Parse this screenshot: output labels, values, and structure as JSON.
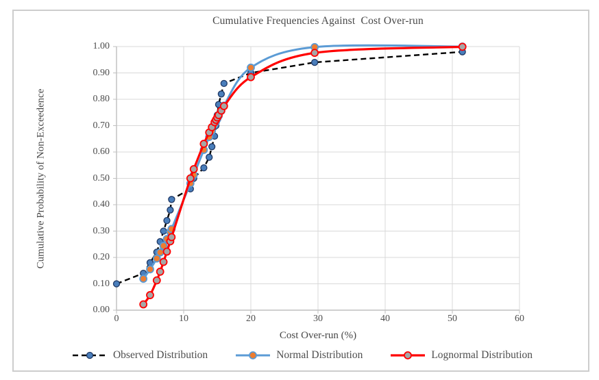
{
  "figure": {
    "x_axis": {
      "tick_labels": [
        "0",
        "10",
        "20",
        "30",
        "40",
        "50",
        "60"
      ]
    },
    "y_axis": {
      "tick_labels": [
        "0.00",
        "0.10",
        "0.20",
        "0.30",
        "0.40",
        "0.50",
        "0.60",
        "0.70",
        "0.80",
        "0.90",
        "1.00"
      ]
    },
    "colors": {
      "gridline": "#d9d9d9",
      "axis_line": "#bfbfbf",
      "text": "#4d4d4d",
      "figure_border": "#cdcdcd",
      "observed_line": "#000000",
      "observed_marker_fill": "#4a7ebb",
      "observed_marker_stroke": "#1f3864",
      "normal_line": "#5b9bd5",
      "normal_marker_fill": "#ed7d31",
      "lognormal_line": "#ff0000",
      "lognormal_marker_fill": "#a6a6a6"
    }
  },
  "chart_data": {
    "type": "line",
    "title": "Cumulative Frequencies Against  Cost Over-run",
    "xlabel": "Cost Over-run (%)",
    "ylabel": "Cumulative Probability of Non-Exceedence",
    "xlim": [
      0,
      60
    ],
    "ylim": [
      0,
      1
    ],
    "x_ticks": [
      0,
      10,
      20,
      30,
      40,
      50,
      60
    ],
    "y_ticks": [
      0,
      0.1,
      0.2,
      0.3,
      0.4,
      0.5,
      0.6,
      0.7,
      0.8,
      0.9,
      1.0
    ],
    "grid": true,
    "legend_position": "bottom",
    "series": [
      {
        "name": "Observed Distribution",
        "line_style": "dashed",
        "smooth": false,
        "line_color": "#000000",
        "line_width": 2.4,
        "marker_fill": "#4a7ebb",
        "marker_stroke": "#1f3864",
        "marker_radius": 4.5,
        "points": [
          [
            0,
            0.1
          ],
          [
            4,
            0.14
          ],
          [
            5,
            0.18
          ],
          [
            6,
            0.22
          ],
          [
            6.5,
            0.26
          ],
          [
            7,
            0.3
          ],
          [
            7.5,
            0.34
          ],
          [
            8,
            0.38
          ],
          [
            8.2,
            0.42
          ],
          [
            11,
            0.46
          ],
          [
            11.5,
            0.5
          ],
          [
            13,
            0.54
          ],
          [
            13.8,
            0.58
          ],
          [
            14.2,
            0.62
          ],
          [
            14.6,
            0.66
          ],
          [
            14.8,
            0.7
          ],
          [
            15,
            0.74
          ],
          [
            15.2,
            0.78
          ],
          [
            15.6,
            0.82
          ],
          [
            16,
            0.86
          ],
          [
            20,
            0.9
          ],
          [
            29.5,
            0.94
          ],
          [
            51.5,
            0.98
          ]
        ]
      },
      {
        "name": "Normal Distribution",
        "line_style": "solid",
        "smooth": true,
        "line_color": "#5b9bd5",
        "line_width": 3,
        "marker_fill": "#ed7d31",
        "marker_stroke": "#5b9bd5",
        "marker_radius": 5,
        "points": [
          [
            4,
            0.119
          ],
          [
            5,
            0.155
          ],
          [
            6,
            0.196
          ],
          [
            6.5,
            0.219
          ],
          [
            7,
            0.244
          ],
          [
            7.5,
            0.27
          ],
          [
            8,
            0.297
          ],
          [
            8.2,
            0.308
          ],
          [
            11,
            0.481
          ],
          [
            11.5,
            0.513
          ],
          [
            13,
            0.608
          ],
          [
            13.8,
            0.657
          ],
          [
            14.2,
            0.68
          ],
          [
            14.6,
            0.703
          ],
          [
            14.8,
            0.714
          ],
          [
            15,
            0.725
          ],
          [
            15.2,
            0.736
          ],
          [
            15.6,
            0.756
          ],
          [
            16,
            0.776
          ],
          [
            20,
            0.92
          ],
          [
            29.5,
            0.998
          ],
          [
            51.5,
            1.0
          ]
        ]
      },
      {
        "name": "Lognormal Distribution",
        "line_style": "solid",
        "smooth": true,
        "line_color": "#ff0000",
        "line_width": 3.2,
        "marker_fill": "#a6a6a6",
        "marker_stroke": "#ff0000",
        "marker_radius": 5,
        "points": [
          [
            4,
            0.022
          ],
          [
            5,
            0.057
          ],
          [
            6,
            0.113
          ],
          [
            6.5,
            0.146
          ],
          [
            7,
            0.183
          ],
          [
            7.5,
            0.222
          ],
          [
            8,
            0.261
          ],
          [
            8.2,
            0.277
          ],
          [
            11,
            0.5
          ],
          [
            11.5,
            0.535
          ],
          [
            13,
            0.631
          ],
          [
            13.8,
            0.674
          ],
          [
            14.2,
            0.694
          ],
          [
            14.6,
            0.713
          ],
          [
            14.8,
            0.722
          ],
          [
            15,
            0.731
          ],
          [
            15.2,
            0.74
          ],
          [
            15.6,
            0.757
          ],
          [
            16,
            0.774
          ],
          [
            20,
            0.884
          ],
          [
            29.5,
            0.976
          ],
          [
            51.5,
            0.999
          ]
        ]
      }
    ]
  }
}
